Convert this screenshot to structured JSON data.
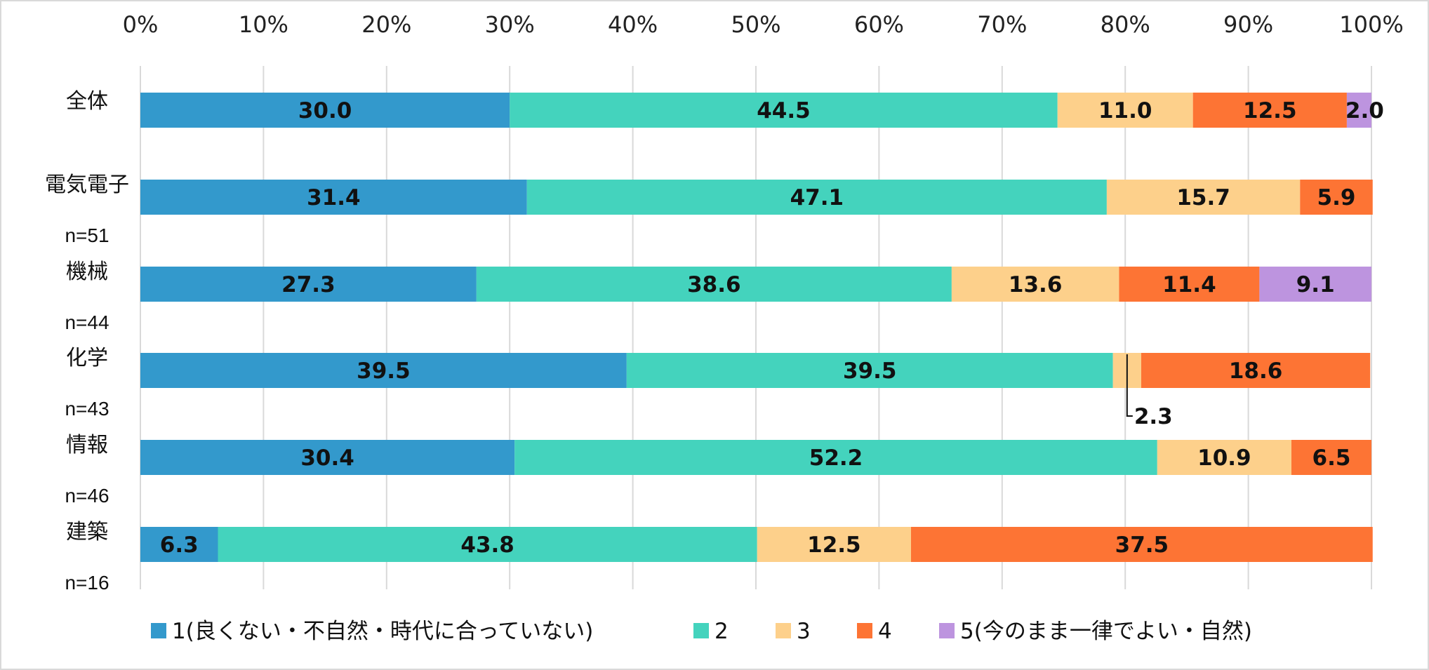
{
  "chart_data": {
    "type": "bar",
    "orientation": "horizontal",
    "stacked": "percent",
    "title": "",
    "xlabel": "",
    "ylabel": "",
    "xlim": [
      0,
      100
    ],
    "x_ticks": [
      "0%",
      "10%",
      "20%",
      "30%",
      "40%",
      "50%",
      "60%",
      "70%",
      "80%",
      "90%",
      "100%"
    ],
    "grid": true,
    "legend_position": "bottom",
    "categories": [
      {
        "label": "全体",
        "n": ""
      },
      {
        "label": "電気電子",
        "n": "n=51"
      },
      {
        "label": "機械",
        "n": "n=44"
      },
      {
        "label": "化学",
        "n": "n=43"
      },
      {
        "label": "情報",
        "n": "n=46"
      },
      {
        "label": "建築",
        "n": "n=16"
      }
    ],
    "series": [
      {
        "name": "1(良くない・不自然・時代に合っていない)",
        "color": "#3399cc",
        "values": [
          30.0,
          31.4,
          27.3,
          39.5,
          30.4,
          6.3
        ],
        "labels": [
          "30.0",
          "31.4",
          "27.3",
          "39.5",
          "30.4",
          "6.3"
        ]
      },
      {
        "name": "2",
        "color": "#44d3bd",
        "values": [
          44.5,
          47.1,
          38.6,
          39.5,
          52.2,
          43.8
        ],
        "labels": [
          "44.5",
          "47.1",
          "38.6",
          "39.5",
          "52.2",
          "43.8"
        ]
      },
      {
        "name": "3",
        "color": "#fdd08b",
        "values": [
          11.0,
          15.7,
          13.6,
          2.3,
          10.9,
          12.5
        ],
        "labels": [
          "11.0",
          "15.7",
          "13.6",
          "2.3",
          "10.9",
          "12.5"
        ]
      },
      {
        "name": "4",
        "color": "#fd7434",
        "values": [
          12.5,
          5.9,
          11.4,
          18.6,
          6.5,
          37.5
        ],
        "labels": [
          "12.5",
          "5.9",
          "11.4",
          "18.6",
          "6.5",
          "37.5"
        ]
      },
      {
        "name": "5(今のまま一律でよい・自然)",
        "color": "#bd94df",
        "values": [
          2.0,
          0,
          9.1,
          0,
          0,
          0
        ],
        "labels": [
          "2.0",
          "",
          "9.1",
          "",
          "",
          ""
        ]
      }
    ],
    "callouts": [
      {
        "category_index": 3,
        "series_index": 2,
        "text": "2.3"
      }
    ]
  }
}
